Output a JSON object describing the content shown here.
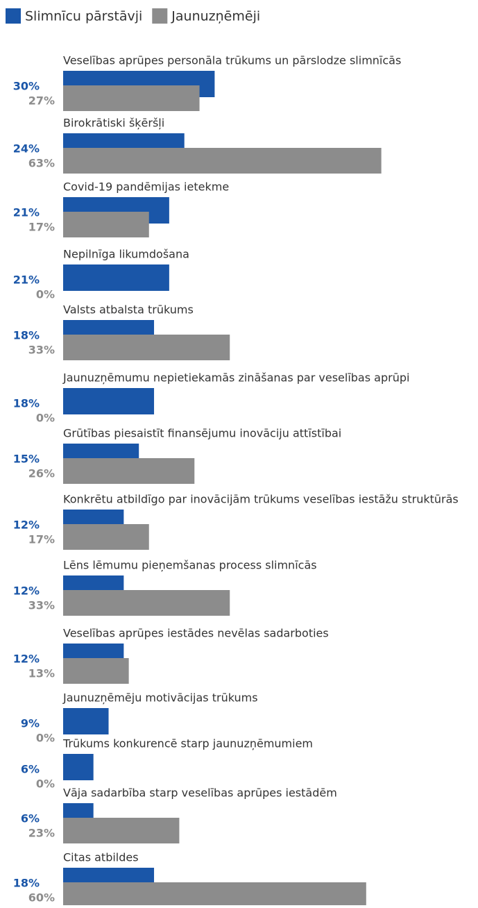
{
  "chart_data": {
    "type": "bar",
    "orientation": "horizontal",
    "categories": [
      "Veselības aprūpes personāla trūkums un pārslodze slimnīcās",
      "Birokrātiski šķēršļi",
      "Covid-19 pandēmijas ietekme",
      "Nepilnīga likumdošana",
      "Valsts atbalsta trūkums",
      "Jaunuzņēmumu nepietiekamās zināšanas par veselības aprūpi",
      "Grūtības piesaistīt finansējumu inovāciju attīstībai",
      "Konkrētu atbildīgo par inovācijām trūkums veselības iestāžu struktūrās",
      "Lēns lēmumu pieņemšanas process slimnīcās",
      "Veselības aprūpes iestādes nevēlas sadarboties",
      "Jaunuzņēmēju motivācijas trūkums",
      "Trūkums konkurencē starp jaunuzņēmumiem",
      "Vāja sadarbība starp veselības aprūpes iestādēm",
      "Citas atbildes"
    ],
    "series": [
      {
        "name": "Slimnīcu pārstāvji",
        "color": "#1a56a8",
        "values": [
          30,
          24,
          21,
          21,
          18,
          18,
          15,
          12,
          12,
          12,
          9,
          6,
          6,
          18
        ],
        "value_labels": [
          "30%",
          "24%",
          "21%",
          "21%",
          "18%",
          "18%",
          "15%",
          "12%",
          "12%",
          "12%",
          "9%",
          "6%",
          "6%",
          "18%"
        ]
      },
      {
        "name": "Jaunuzņēmēji",
        "color": "#8c8c8c",
        "values": [
          27,
          63,
          17,
          0,
          33,
          0,
          26,
          17,
          33,
          13,
          0,
          0,
          23,
          60
        ],
        "value_labels": [
          "27%",
          "63%",
          "17%",
          "0%",
          "33%",
          "0%",
          "26%",
          "17%",
          "33%",
          "13%",
          "0%",
          "0%",
          "23%",
          "60%"
        ]
      }
    ],
    "legend": "top-left"
  }
}
